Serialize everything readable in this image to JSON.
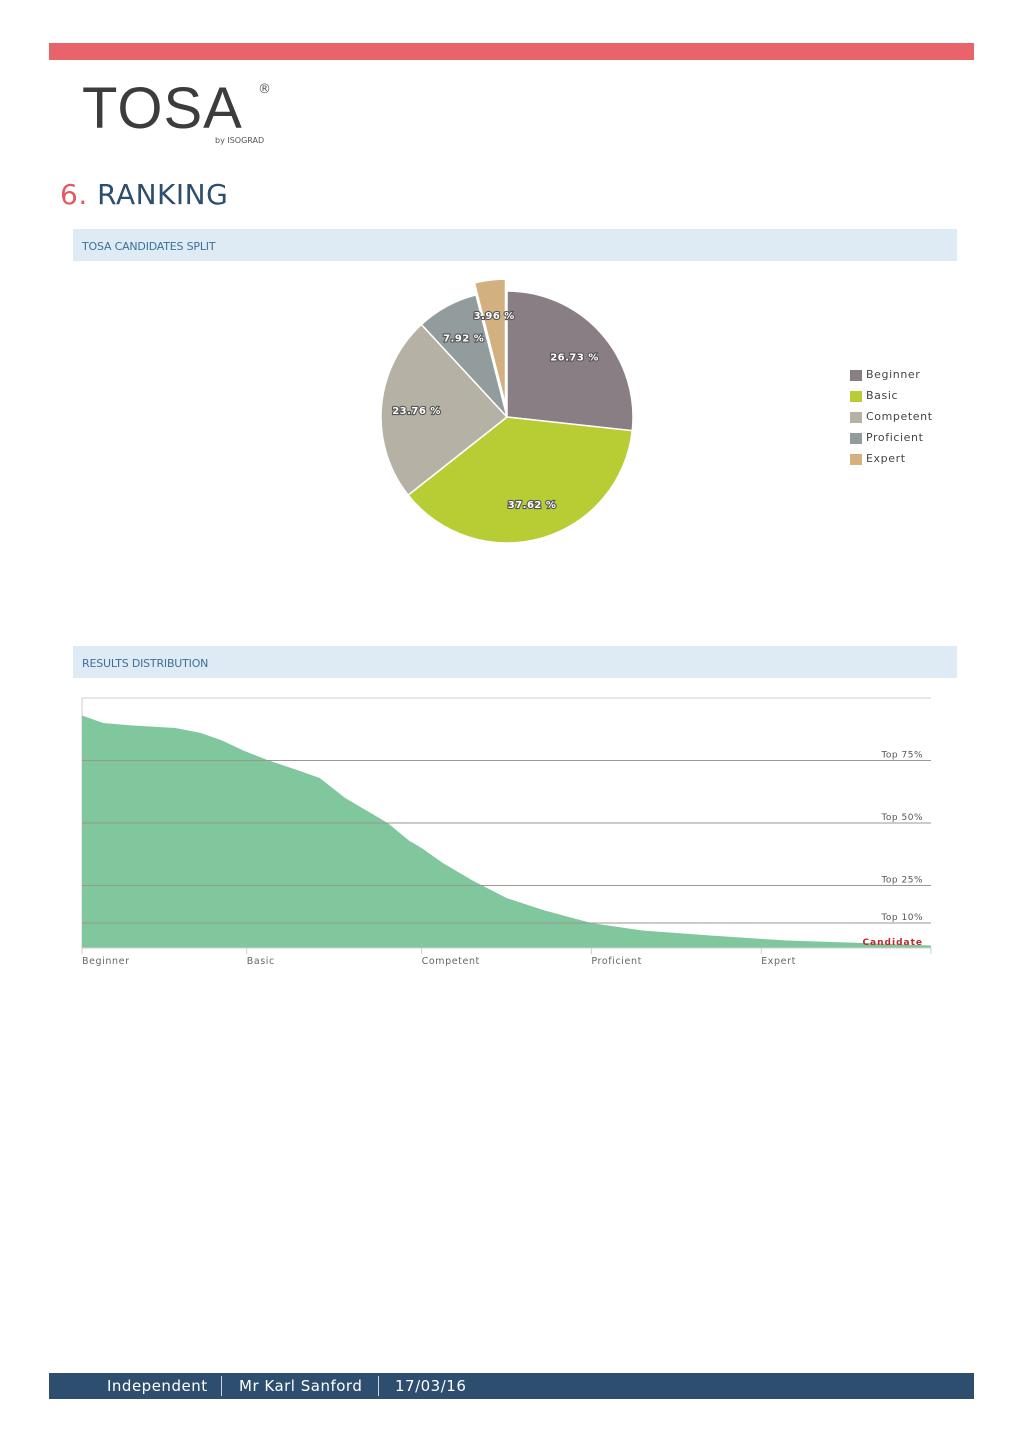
{
  "header": {
    "logo_text": "TOSA",
    "logo_registered": "®",
    "logo_byline": "by ISOGRAD"
  },
  "section": {
    "number": "6.",
    "title": "RANKING"
  },
  "pie_panel": {
    "title": "TOSA CANDIDATES SPLIT"
  },
  "dist_panel": {
    "title": "RESULTS DISTRIBUTION"
  },
  "colors": {
    "accent_bar": "#e8636a",
    "footer_bg": "#2d4e6e",
    "area_fill": "#80c79d",
    "candidate_label": "#c0282e"
  },
  "chart_data": [
    {
      "type": "pie",
      "labels": [
        "Beginner",
        "Basic",
        "Competent",
        "Proficient",
        "Expert"
      ],
      "values": [
        26.73,
        37.62,
        23.76,
        7.92,
        3.96
      ],
      "value_labels": [
        "26.73 %",
        "37.62 %",
        "23.76 %",
        "7.92 %",
        "3.96 %"
      ],
      "colors": [
        "#8a7e85",
        "#b8cd34",
        "#b5b2a5",
        "#939c9c",
        "#d2b07f"
      ],
      "exploded": "Expert",
      "legend": "right"
    },
    {
      "type": "area",
      "categories": [
        "Beginner",
        "Basic",
        "Competent",
        "Proficient",
        "Expert"
      ],
      "x": [
        0,
        0.025,
        0.06,
        0.11,
        0.14,
        0.165,
        0.19,
        0.22,
        0.255,
        0.28,
        0.31,
        0.335,
        0.36,
        0.385,
        0.4,
        0.425,
        0.46,
        0.5,
        0.545,
        0.6,
        0.66,
        0.74,
        0.83,
        0.92,
        1.0
      ],
      "y": [
        93,
        90,
        89,
        88,
        86,
        83,
        79,
        75,
        71,
        68,
        60,
        55,
        50,
        43,
        40,
        34,
        27,
        20,
        15,
        10,
        7,
        5,
        3,
        2,
        1
      ],
      "reference_lines": [
        {
          "label": "Top 75%",
          "value": 75
        },
        {
          "label": "Top 50%",
          "value": 50
        },
        {
          "label": "Top 25%",
          "value": 25
        },
        {
          "label": "Top 10%",
          "value": 10
        }
      ],
      "candidate_label": "Candidate",
      "ylim": [
        0,
        100
      ],
      "grid": false
    }
  ],
  "footer": {
    "company": "Independent",
    "name": "Mr Karl Sanford",
    "date": "17/03/16"
  }
}
